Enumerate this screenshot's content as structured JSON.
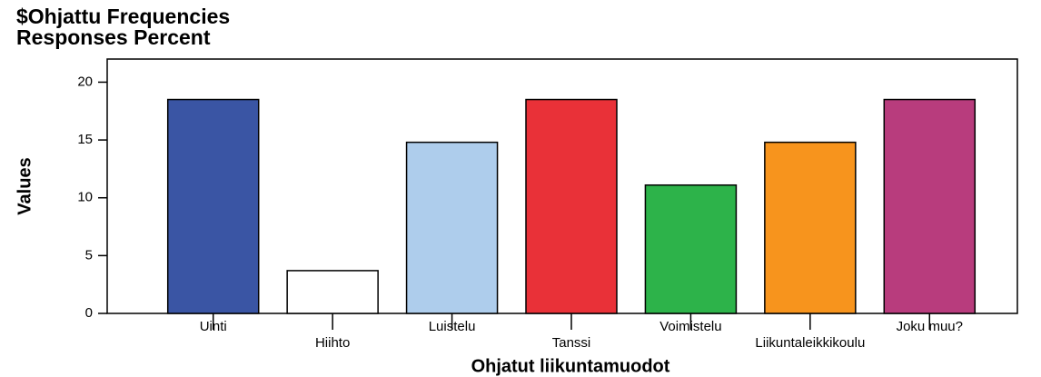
{
  "chart_data": {
    "type": "bar",
    "title": "$Ohjattu Frequencies",
    "subtitle": "Responses Percent",
    "x_label": "Ohjatut liikuntamuodot",
    "y_label": "Values",
    "categories": [
      "Uinti",
      "Hiihto",
      "Luistelu",
      "Tanssi",
      "Voimistelu",
      "Liikuntaleikkikoulu",
      "Joku muu?"
    ],
    "values": [
      18.5,
      3.7,
      14.8,
      18.5,
      11.1,
      14.8,
      18.5
    ],
    "colors": [
      "#3a55a4",
      "#ffffff",
      "#aecdec",
      "#e93138",
      "#2db34a",
      "#f7941d",
      "#b83c7d"
    ],
    "ylim": [
      0,
      22
    ],
    "yticks": [
      0,
      5,
      10,
      15,
      20
    ],
    "grid": false
  }
}
